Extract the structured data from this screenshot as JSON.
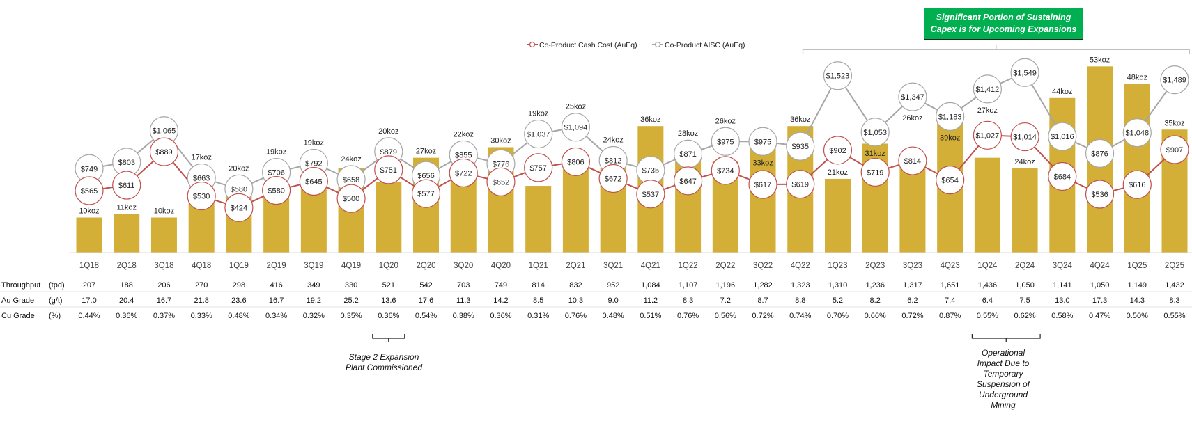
{
  "chart_data": {
    "type": "bar+line",
    "categories": [
      "1Q18",
      "2Q18",
      "3Q18",
      "4Q18",
      "1Q19",
      "2Q19",
      "3Q19",
      "4Q19",
      "1Q20",
      "2Q20",
      "3Q20",
      "4Q20",
      "1Q21",
      "2Q21",
      "3Q21",
      "4Q21",
      "1Q22",
      "2Q22",
      "3Q22",
      "4Q22",
      "1Q23",
      "2Q23",
      "3Q23",
      "4Q23",
      "1Q24",
      "2Q24",
      "3Q24",
      "4Q24",
      "1Q25",
      "2Q25"
    ],
    "bars": {
      "unit_suffix": "koz",
      "values": [
        10,
        11,
        10,
        17,
        20,
        19,
        19,
        24,
        20,
        27,
        22,
        30,
        19,
        25,
        24,
        36,
        28,
        26,
        33,
        36,
        21,
        31,
        26,
        39,
        27,
        24,
        44,
        53,
        48,
        35
      ],
      "color": "#d4af37"
    },
    "series": [
      {
        "name": "Co-Product Cash Cost (AuEq)",
        "color": "#c0504d",
        "values": [
          565,
          611,
          889,
          530,
          424,
          580,
          645,
          500,
          751,
          577,
          722,
          652,
          757,
          806,
          672,
          537,
          647,
          734,
          617,
          619,
          902,
          719,
          814,
          654,
          1027,
          1014,
          684,
          536,
          616,
          907
        ]
      },
      {
        "name": "Co-Product AISC (AuEq)",
        "color": "#a6a6a6",
        "values": [
          749,
          803,
          1065,
          663,
          580,
          706,
          792,
          658,
          879,
          656,
          855,
          776,
          1037,
          1094,
          812,
          735,
          871,
          975,
          975,
          935,
          1523,
          1053,
          1347,
          1183,
          1412,
          1549,
          1016,
          876,
          1048,
          1489
        ]
      }
    ],
    "legend_position": "top-center",
    "grid": false
  },
  "table": {
    "rows": [
      {
        "label": "Throughput",
        "unit": "(tpd)",
        "values": [
          "207",
          "188",
          "206",
          "270",
          "298",
          "416",
          "349",
          "330",
          "521",
          "542",
          "703",
          "749",
          "814",
          "832",
          "952",
          "1,084",
          "1,107",
          "1,196",
          "1,282",
          "1,323",
          "1,310",
          "1,236",
          "1,317",
          "1,651",
          "1,436",
          "1,050",
          "1,141",
          "1,050",
          "1,149",
          "1,432"
        ]
      },
      {
        "label": "Au Grade",
        "unit": "(g/t)",
        "values": [
          "17.0",
          "20.4",
          "16.7",
          "21.8",
          "23.6",
          "16.7",
          "19.2",
          "25.2",
          "13.6",
          "17.6",
          "11.3",
          "14.2",
          "8.5",
          "10.3",
          "9.0",
          "11.2",
          "8.3",
          "7.2",
          "8.7",
          "8.8",
          "5.2",
          "8.2",
          "6.2",
          "7.4",
          "6.4",
          "7.5",
          "13.0",
          "17.3",
          "14.3",
          "8.3"
        ]
      },
      {
        "label": "Cu Grade",
        "unit": "(%)",
        "values": [
          "0.44%",
          "0.36%",
          "0.37%",
          "0.33%",
          "0.48%",
          "0.34%",
          "0.32%",
          "0.35%",
          "0.36%",
          "0.54%",
          "0.38%",
          "0.36%",
          "0.31%",
          "0.76%",
          "0.48%",
          "0.51%",
          "0.76%",
          "0.56%",
          "0.72%",
          "0.74%",
          "0.70%",
          "0.66%",
          "0.72%",
          "0.87%",
          "0.55%",
          "0.62%",
          "0.58%",
          "0.47%",
          "0.50%",
          "0.55%"
        ]
      }
    ]
  },
  "annotations": {
    "callout_line1": "Significant Portion of Sustaining",
    "callout_line2": "Capex is for Upcoming Expansions",
    "callout_color": "#00b050",
    "stage2_line1": "Stage 2 Expansion",
    "stage2_line2": "Plant Commissioned",
    "ops_lines": [
      "Operational",
      "Impact Due to",
      "Temporary",
      "Suspension of",
      "Underground",
      "Mining"
    ]
  }
}
